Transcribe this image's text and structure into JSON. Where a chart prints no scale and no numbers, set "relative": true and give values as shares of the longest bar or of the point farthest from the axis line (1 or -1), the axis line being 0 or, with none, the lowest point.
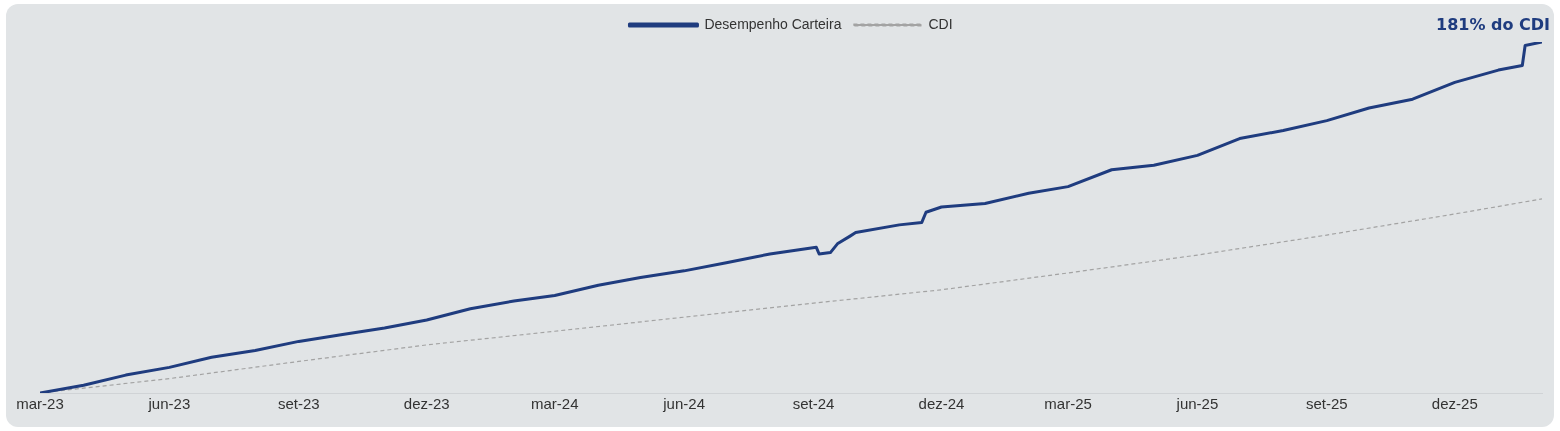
{
  "chart_data": {
    "type": "line",
    "relative": true,
    "legend": "top",
    "grid": false,
    "marker": "none",
    "xticks": [
      {
        "value": "2023-03-01",
        "label": "mar-23"
      },
      {
        "value": "2023-06-01",
        "label": "jun-23"
      },
      {
        "value": "2023-09-01",
        "label": "set-23"
      },
      {
        "value": "2023-12-01",
        "label": "dez-23"
      },
      {
        "value": "2024-03-01",
        "label": "mar-24"
      },
      {
        "value": "2024-06-01",
        "label": "jun-24"
      },
      {
        "value": "2024-09-01",
        "label": "set-24"
      },
      {
        "value": "2024-12-01",
        "label": "dez-24"
      },
      {
        "value": "2025-03-01",
        "label": "mar-25"
      },
      {
        "value": "2025-06-01",
        "label": "jun-25"
      },
      {
        "value": "2025-09-01",
        "label": "set-25"
      },
      {
        "value": "2025-12-01",
        "label": "dez-25"
      }
    ],
    "xlim": [
      "2023-03-01",
      "2026-02-01"
    ],
    "series": [
      {
        "name": "Desempenho Carteira",
        "color": "#1f3c7f",
        "line_style": "solid",
        "x": [
          "2023-03-01",
          "2023-04-01",
          "2023-05-01",
          "2023-06-01",
          "2023-07-01",
          "2023-08-01",
          "2023-09-01",
          "2023-10-01",
          "2023-11-01",
          "2023-12-01",
          "2024-01-01",
          "2024-02-01",
          "2024-03-01",
          "2024-04-01",
          "2024-05-01",
          "2024-06-01",
          "2024-07-01",
          "2024-08-01",
          "2024-09-03",
          "2024-09-05",
          "2024-09-13",
          "2024-09-18",
          "2024-09-27",
          "2024-10-01",
          "2024-11-01",
          "2024-11-17",
          "2024-11-20",
          "2024-12-01",
          "2025-01-01",
          "2025-02-01",
          "2025-03-01",
          "2025-04-01",
          "2025-05-01",
          "2025-06-01",
          "2025-07-01",
          "2025-08-01",
          "2025-09-01",
          "2025-10-01",
          "2025-11-01",
          "2025-12-01",
          "2026-01-01",
          "2026-01-18",
          "2026-01-20",
          "2026-02-01"
        ],
        "values": [
          0,
          0.022,
          0.051,
          0.073,
          0.102,
          0.121,
          0.147,
          0.166,
          0.185,
          0.208,
          0.24,
          0.262,
          0.278,
          0.307,
          0.329,
          0.348,
          0.371,
          0.396,
          0.415,
          0.396,
          0.4,
          0.425,
          0.447,
          0.457,
          0.479,
          0.486,
          0.515,
          0.53,
          0.54,
          0.569,
          0.588,
          0.636,
          0.649,
          0.677,
          0.725,
          0.748,
          0.776,
          0.812,
          0.837,
          0.885,
          0.92,
          0.933,
          0.99,
          1
        ]
      },
      {
        "name": "CDI",
        "color": "#a3a3a3",
        "line_style": "dashed",
        "x": [
          "2023-03-01",
          "2023-06-01",
          "2023-09-01",
          "2023-12-01",
          "2024-03-01",
          "2024-06-01",
          "2024-09-01",
          "2024-12-01",
          "2025-03-01",
          "2025-06-01",
          "2025-09-01",
          "2025-12-01",
          "2026-02-01"
        ],
        "values": [
          0,
          0.041,
          0.09,
          0.137,
          0.176,
          0.216,
          0.256,
          0.294,
          0.342,
          0.393,
          0.45,
          0.51,
          0.553
        ]
      }
    ],
    "annotations": [
      {
        "text": "181% do CDI",
        "x": "2026-02-01",
        "y": 1
      }
    ]
  }
}
